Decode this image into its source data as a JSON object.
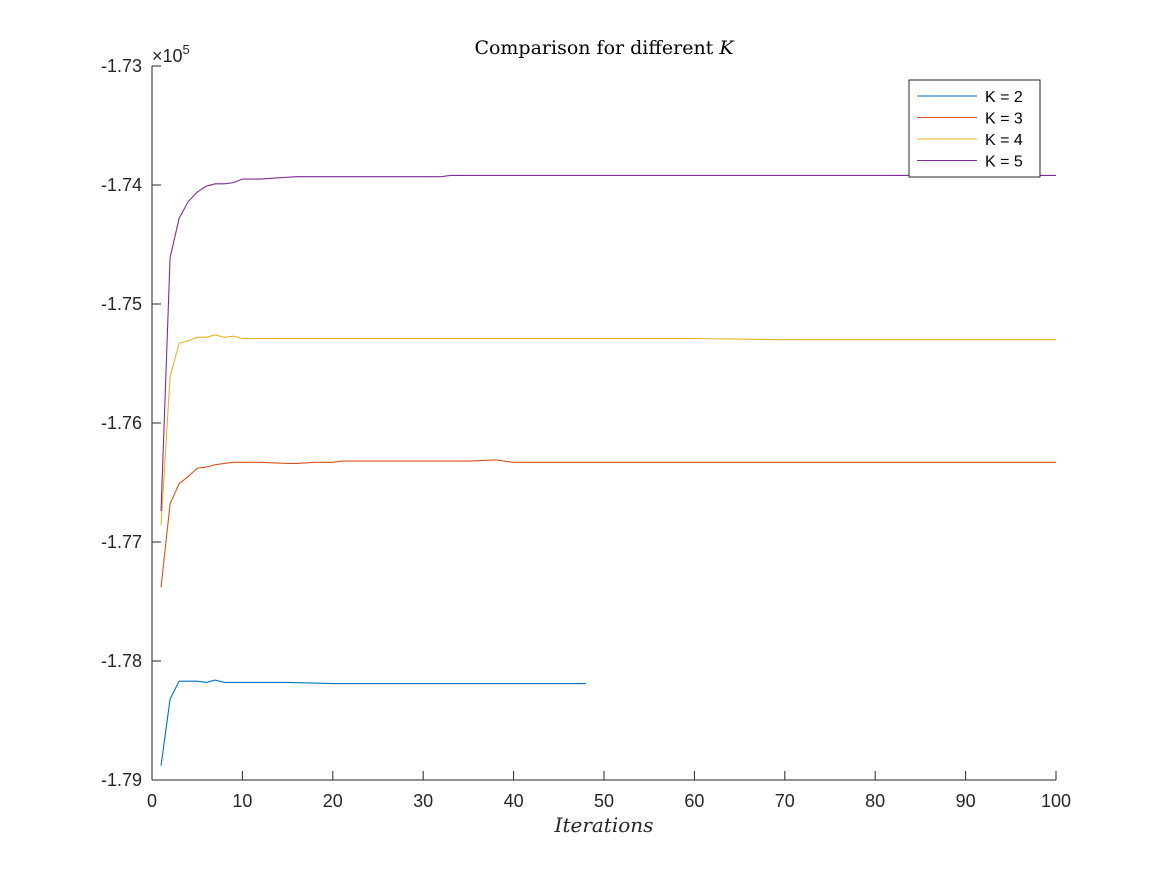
{
  "chart_data": {
    "type": "line",
    "title": "Comparison for different K",
    "title_plain": "Comparison for different ",
    "title_var": "K",
    "xlabel": "Iterations",
    "ylabel": "",
    "xlim": [
      0,
      100
    ],
    "ylim": [
      -1.79,
      -1.73
    ],
    "y_scale_label_base": "×10",
    "y_scale_label_exp": "5",
    "x_ticks": [
      0,
      10,
      20,
      30,
      40,
      50,
      60,
      70,
      80,
      90,
      100
    ],
    "x_tick_labels": [
      "0",
      "10",
      "20",
      "30",
      "40",
      "50",
      "60",
      "70",
      "80",
      "90",
      "100"
    ],
    "y_ticks": [
      -1.79,
      -1.78,
      -1.77,
      -1.76,
      -1.75,
      -1.74,
      -1.73
    ],
    "y_tick_labels": [
      "-1.79",
      "-1.78",
      "-1.77",
      "-1.76",
      "-1.75",
      "-1.74",
      "-1.73"
    ],
    "grid": false,
    "legend_position": "top-right",
    "series": [
      {
        "name": "K = 2",
        "color": "#0072BD",
        "points": [
          [
            1,
            -1.7888
          ],
          [
            2,
            -1.7832
          ],
          [
            3,
            -1.7817
          ],
          [
            4,
            -1.7817
          ],
          [
            5,
            -1.7817
          ],
          [
            6,
            -1.7818
          ],
          [
            7,
            -1.7816
          ],
          [
            8,
            -1.7818
          ],
          [
            9,
            -1.7818
          ],
          [
            10,
            -1.7818
          ],
          [
            12,
            -1.7818
          ],
          [
            15,
            -1.7818
          ],
          [
            20,
            -1.7819
          ],
          [
            25,
            -1.7819
          ],
          [
            30,
            -1.7819
          ],
          [
            35,
            -1.7819
          ],
          [
            40,
            -1.7819
          ],
          [
            45,
            -1.7819
          ],
          [
            48,
            -1.7819
          ]
        ]
      },
      {
        "name": "K = 3",
        "color": "#D95319",
        "points": [
          [
            1,
            -1.7738
          ],
          [
            2,
            -1.7668
          ],
          [
            3,
            -1.7651
          ],
          [
            4,
            -1.7645
          ],
          [
            5,
            -1.7638
          ],
          [
            6,
            -1.7637
          ],
          [
            7,
            -1.7635
          ],
          [
            8,
            -1.7634
          ],
          [
            9,
            -1.7633
          ],
          [
            10,
            -1.7633
          ],
          [
            12,
            -1.7633
          ],
          [
            15,
            -1.7634
          ],
          [
            16,
            -1.7634
          ],
          [
            18,
            -1.7633
          ],
          [
            20,
            -1.7633
          ],
          [
            21,
            -1.7632
          ],
          [
            25,
            -1.7632
          ],
          [
            30,
            -1.7632
          ],
          [
            35,
            -1.7632
          ],
          [
            38,
            -1.7631
          ],
          [
            40,
            -1.7633
          ],
          [
            50,
            -1.7633
          ],
          [
            60,
            -1.7633
          ],
          [
            70,
            -1.7633
          ],
          [
            80,
            -1.7633
          ],
          [
            90,
            -1.7633
          ],
          [
            100,
            -1.7633
          ]
        ]
      },
      {
        "name": "K = 4",
        "color": "#EDB120",
        "points": [
          [
            1,
            -1.7686
          ],
          [
            2,
            -1.7561
          ],
          [
            3,
            -1.7533
          ],
          [
            4,
            -1.7531
          ],
          [
            5,
            -1.7528
          ],
          [
            6,
            -1.7528
          ],
          [
            7,
            -1.7526
          ],
          [
            8,
            -1.7528
          ],
          [
            9,
            -1.7527
          ],
          [
            10,
            -1.7529
          ],
          [
            12,
            -1.7529
          ],
          [
            15,
            -1.7529
          ],
          [
            20,
            -1.7529
          ],
          [
            30,
            -1.7529
          ],
          [
            40,
            -1.7529
          ],
          [
            50,
            -1.7529
          ],
          [
            60,
            -1.7529
          ],
          [
            70,
            -1.753
          ],
          [
            80,
            -1.753
          ],
          [
            90,
            -1.753
          ],
          [
            100,
            -1.753
          ]
        ]
      },
      {
        "name": "K = 5",
        "color": "#7E2F8E",
        "points": [
          [
            1,
            -1.7674
          ],
          [
            2,
            -1.7461
          ],
          [
            3,
            -1.7428
          ],
          [
            4,
            -1.7414
          ],
          [
            5,
            -1.7406
          ],
          [
            6,
            -1.7401
          ],
          [
            7,
            -1.7399
          ],
          [
            8,
            -1.7399
          ],
          [
            9,
            -1.7398
          ],
          [
            10,
            -1.7395
          ],
          [
            12,
            -1.7395
          ],
          [
            14,
            -1.7394
          ],
          [
            16,
            -1.7393
          ],
          [
            20,
            -1.7393
          ],
          [
            25,
            -1.7393
          ],
          [
            30,
            -1.7393
          ],
          [
            32,
            -1.7393
          ],
          [
            33,
            -1.7392
          ],
          [
            40,
            -1.7392
          ],
          [
            50,
            -1.7392
          ],
          [
            60,
            -1.7392
          ],
          [
            70,
            -1.7392
          ],
          [
            80,
            -1.7392
          ],
          [
            90,
            -1.7392
          ],
          [
            100,
            -1.7392
          ]
        ]
      }
    ]
  }
}
